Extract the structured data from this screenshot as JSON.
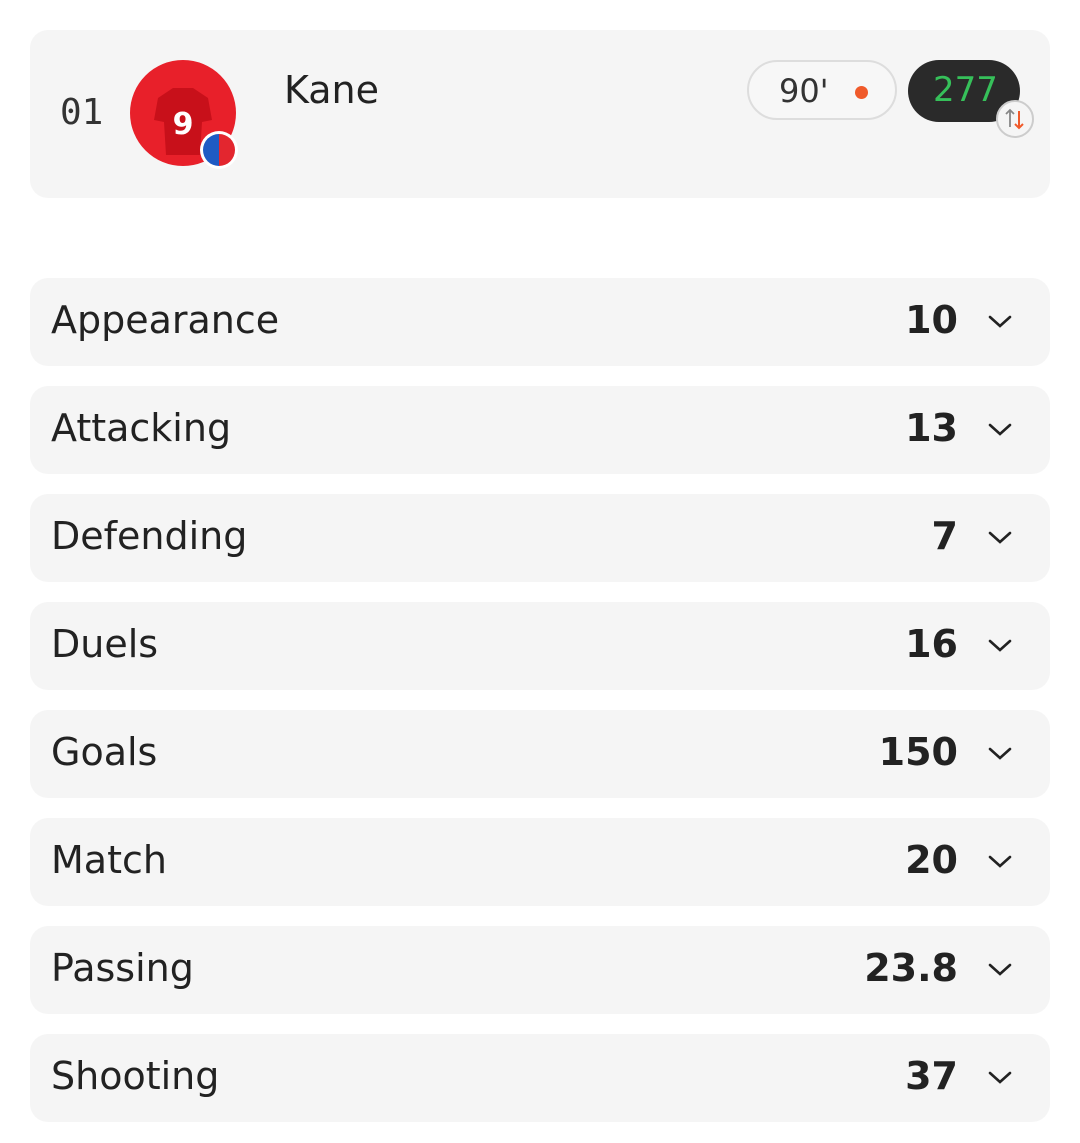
{
  "player": {
    "rank": "01",
    "name": "Kane",
    "minutes": "90'",
    "points": 277
  },
  "stats": [
    {
      "label": "Appearance",
      "value": 10
    },
    {
      "label": "Attacking",
      "value": 13
    },
    {
      "label": "Defending",
      "value": 7
    },
    {
      "label": "Duels",
      "value": 16
    },
    {
      "label": "Goals",
      "value": 150
    },
    {
      "label": "Match",
      "value": 20
    },
    {
      "label": "Passing",
      "value": 23.8
    },
    {
      "label": "Shooting",
      "value": 37
    }
  ]
}
